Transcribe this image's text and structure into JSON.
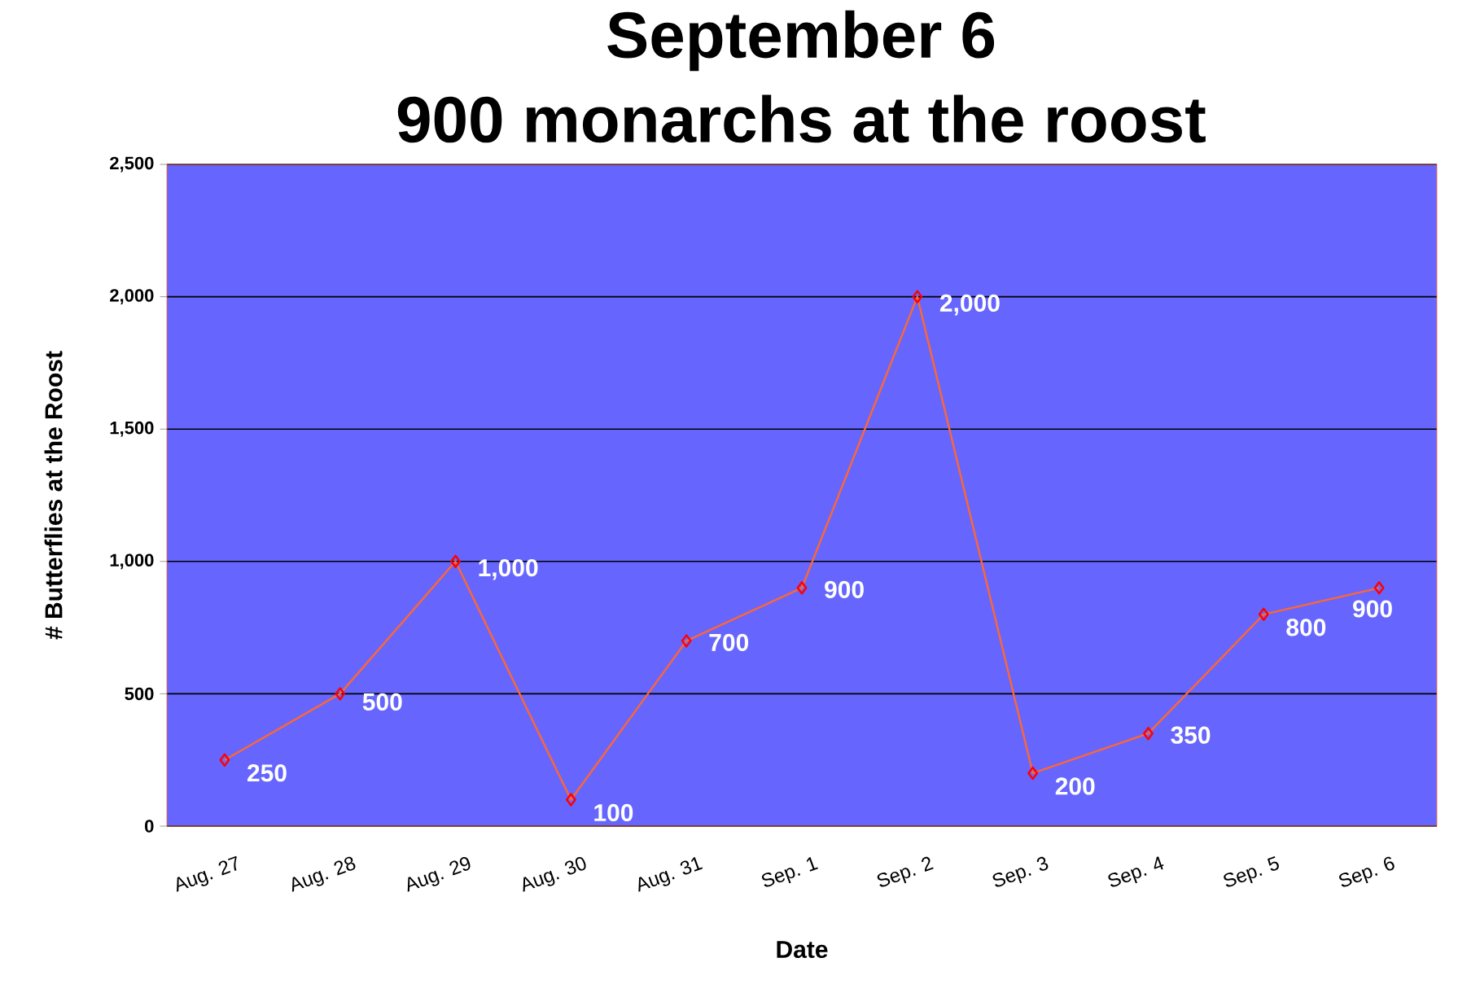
{
  "chart_data": {
    "type": "line",
    "title": "September 6",
    "subtitle": "900 monarchs at the roost",
    "xlabel": "Date",
    "ylabel": "# Butterflies at the Roost",
    "categories": [
      "Aug. 27",
      "Aug. 28",
      "Aug. 29",
      "Aug. 30",
      "Aug. 31",
      "Sep. 1",
      "Sep. 2",
      "Sep. 3",
      "Sep. 4",
      "Sep. 5",
      "Sep. 6"
    ],
    "values": [
      250,
      500,
      1000,
      100,
      700,
      900,
      2000,
      200,
      350,
      800,
      900
    ],
    "value_labels": [
      "250",
      "500",
      "1,000",
      "100",
      "700",
      "900",
      "2,000",
      "200",
      "350",
      "800",
      "900"
    ],
    "color": "#ff6633",
    "marker": "diamond",
    "line_style": "solid",
    "grid": "y",
    "ylim": [
      0,
      2500
    ],
    "yticks": [
      {
        "value": 0,
        "label": "0"
      },
      {
        "value": 500,
        "label": "500"
      },
      {
        "value": 1000,
        "label": "1,000"
      },
      {
        "value": 1500,
        "label": "1,500"
      },
      {
        "value": 2000,
        "label": "2,000"
      },
      {
        "value": 2500,
        "label": "2,500"
      }
    ]
  }
}
